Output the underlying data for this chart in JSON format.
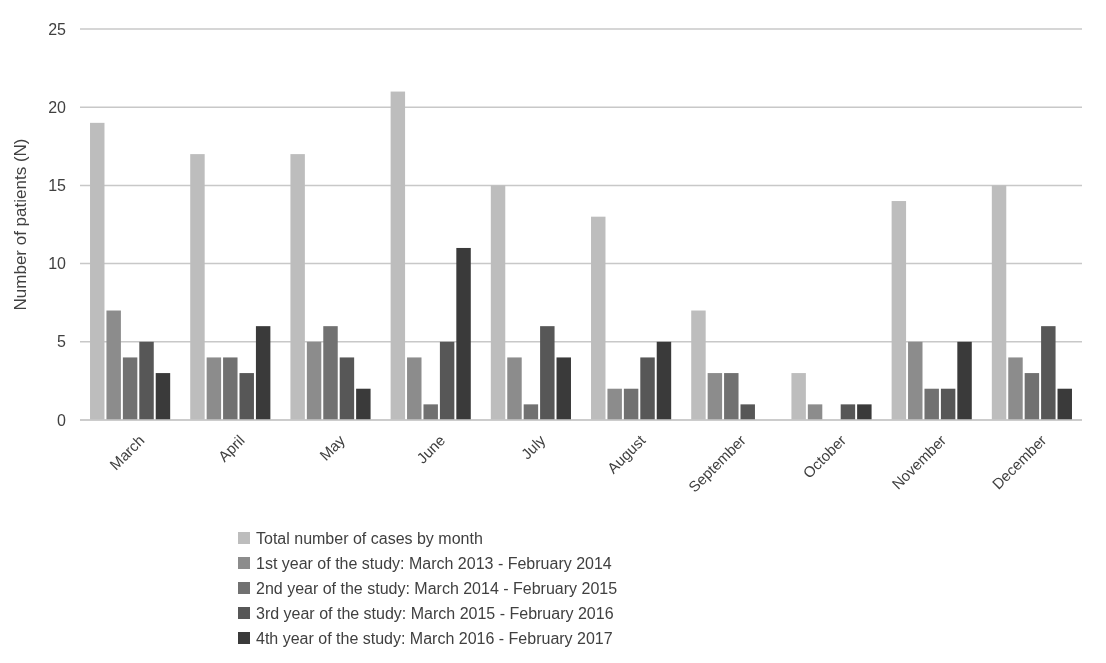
{
  "chart_data": {
    "type": "bar",
    "ylabel": "Number of patients (N)",
    "categories": [
      "March",
      "April",
      "May",
      "June",
      "July",
      "August",
      "September",
      "October",
      "November",
      "December"
    ],
    "series": [
      {
        "name": "Total number of cases by month",
        "color": "#bdbdbd",
        "values": [
          19,
          17,
          17,
          21,
          15,
          13,
          7,
          3,
          14,
          15
        ]
      },
      {
        "name": "1st year of the study: March 2013 - February 2014",
        "color": "#8c8c8c",
        "values": [
          7,
          4,
          5,
          4,
          4,
          2,
          3,
          1,
          5,
          4
        ]
      },
      {
        "name": "2nd year of the study: March 2014 - February 2015",
        "color": "#717171",
        "values": [
          4,
          4,
          6,
          1,
          1,
          2,
          3,
          0,
          2,
          3
        ]
      },
      {
        "name": "3rd year of the study: March 2015 - February 2016",
        "color": "#575757",
        "values": [
          5,
          3,
          4,
          5,
          6,
          4,
          1,
          1,
          2,
          6
        ]
      },
      {
        "name": "4th year of the study: March 2016 - February 2017",
        "color": "#3a3a3a",
        "values": [
          3,
          6,
          2,
          11,
          4,
          5,
          0,
          1,
          5,
          2
        ]
      }
    ],
    "ylim": [
      0,
      25
    ],
    "yticks": [
      0,
      5,
      10,
      15,
      20,
      25
    ],
    "grid": "y",
    "legend": "bottom"
  }
}
